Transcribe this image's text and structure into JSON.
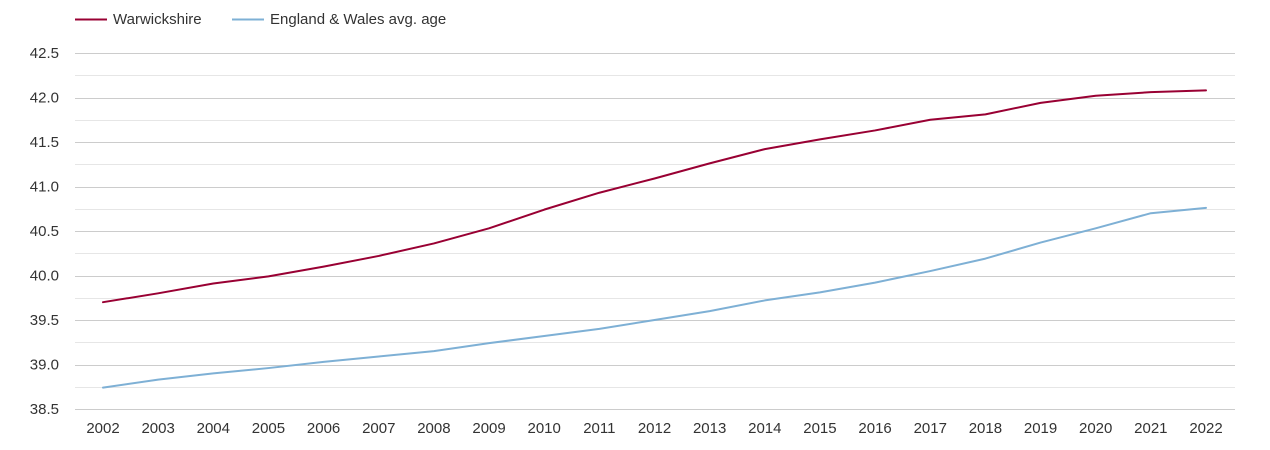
{
  "chart_data": {
    "type": "line",
    "title": "",
    "xlabel": "",
    "ylabel": "",
    "categories": [
      "2002",
      "2003",
      "2004",
      "2005",
      "2006",
      "2007",
      "2008",
      "2009",
      "2010",
      "2011",
      "2012",
      "2013",
      "2014",
      "2015",
      "2016",
      "2017",
      "2018",
      "2019",
      "2020",
      "2021",
      "2022"
    ],
    "series": [
      {
        "name": "Warwickshire",
        "color": "#990033",
        "values": [
          39.7,
          39.8,
          39.91,
          39.99,
          40.1,
          40.22,
          40.36,
          40.53,
          40.74,
          40.93,
          41.09,
          41.26,
          41.42,
          41.53,
          41.63,
          41.75,
          41.81,
          41.94,
          42.02,
          42.06,
          42.08
        ]
      },
      {
        "name": "England & Wales avg. age",
        "color": "#7eb0d5",
        "values": [
          38.74,
          38.83,
          38.9,
          38.96,
          39.03,
          39.09,
          39.15,
          39.24,
          39.32,
          39.4,
          39.5,
          39.6,
          39.72,
          39.81,
          39.92,
          40.05,
          40.19,
          40.37,
          40.53,
          40.7,
          40.76
        ]
      }
    ],
    "ylim": [
      38.5,
      42.5
    ],
    "y_ticks": [
      "38.5",
      "39.0",
      "39.5",
      "40.0",
      "40.5",
      "41.0",
      "41.5",
      "42.0",
      "42.5"
    ],
    "grid": true,
    "legend_position": "top-left"
  }
}
